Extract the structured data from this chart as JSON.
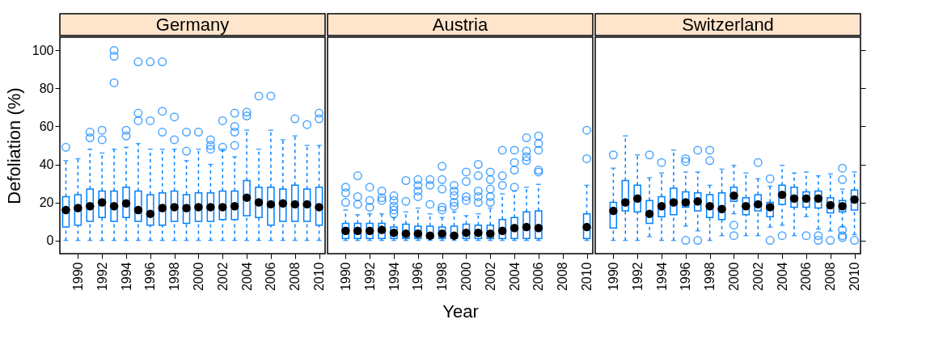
{
  "chart_data": [
    {
      "type": "box",
      "title": "Germany",
      "ylabel": "Defoliation (%)",
      "color": "#0080ff",
      "ylim": [
        -7,
        107
      ],
      "yticks": [
        0,
        20,
        40,
        60,
        80,
        100
      ],
      "categories": [
        null,
        "1990",
        null,
        "1992",
        null,
        "1994",
        null,
        "1996",
        null,
        "1998",
        null,
        "2000",
        null,
        "2002",
        null,
        "2004",
        null,
        "2006",
        null,
        "2008",
        null,
        "2010"
      ],
      "boxes": [
        {
          "low": 0,
          "q1": 7,
          "median": 16,
          "q3": 23,
          "high": 42,
          "outliers": [
            49
          ]
        },
        {
          "low": 0,
          "q1": 8,
          "median": 17,
          "q3": 24,
          "high": 43
        },
        {
          "low": 0,
          "q1": 10,
          "median": 18,
          "q3": 27,
          "high": 48,
          "outliers": [
            57,
            54
          ]
        },
        {
          "low": 0,
          "q1": 12,
          "median": 20,
          "q3": 26,
          "high": 46,
          "outliers": [
            58,
            53
          ]
        },
        {
          "low": 0,
          "q1": 10,
          "median": 18,
          "q3": 26,
          "high": 48,
          "outliers": [
            100,
            97,
            83
          ]
        },
        {
          "low": 0,
          "q1": 12,
          "median": 19.5,
          "q3": 28,
          "high": 49,
          "outliers": [
            58,
            55
          ]
        },
        {
          "low": 0,
          "q1": 10,
          "median": 16,
          "q3": 26,
          "high": 51,
          "outliers": [
            94,
            67,
            63
          ]
        },
        {
          "low": 0,
          "q1": 8,
          "median": 14,
          "q3": 24,
          "high": 48,
          "outliers": [
            94,
            63
          ]
        },
        {
          "low": 0,
          "q1": 8,
          "median": 17,
          "q3": 25,
          "high": 48,
          "outliers": [
            94,
            68,
            57
          ]
        },
        {
          "low": 0,
          "q1": 10,
          "median": 17.5,
          "q3": 26,
          "high": 48,
          "outliers": [
            65,
            53
          ]
        },
        {
          "low": 0,
          "q1": 9,
          "median": 17,
          "q3": 24,
          "high": 42,
          "outliers": [
            57,
            47
          ]
        },
        {
          "low": 0,
          "q1": 10,
          "median": 17.5,
          "q3": 25,
          "high": 48,
          "outliers": [
            57
          ]
        },
        {
          "low": 0,
          "q1": 10,
          "median": 17.5,
          "q3": 25,
          "high": 40,
          "outliers": [
            53,
            50,
            48
          ]
        },
        {
          "low": 0,
          "q1": 11,
          "median": 17.5,
          "q3": 26,
          "high": 48,
          "outliers": [
            63,
            49
          ]
        },
        {
          "low": 0,
          "q1": 11,
          "median": 18,
          "q3": 26,
          "high": 44,
          "outliers": [
            67,
            60,
            57,
            50
          ]
        },
        {
          "low": 0,
          "q1": 13,
          "median": 22.5,
          "q3": 31.5,
          "high": 58,
          "outliers": [
            67.5,
            65.5
          ]
        },
        {
          "low": 0,
          "q1": 12,
          "median": 20,
          "q3": 28,
          "high": 48,
          "outliers": [
            76
          ]
        },
        {
          "low": 0,
          "q1": 8,
          "median": 19,
          "q3": 28,
          "high": 58,
          "outliers": [
            76
          ]
        },
        {
          "low": 0,
          "q1": 10,
          "median": 19.5,
          "q3": 27,
          "high": 53
        },
        {
          "low": 0,
          "q1": 10,
          "median": 19,
          "q3": 29,
          "high": 55,
          "outliers": [
            64
          ]
        },
        {
          "low": 0,
          "q1": 10,
          "median": 19,
          "q3": 27,
          "high": 50,
          "outliers": [
            61
          ]
        },
        {
          "low": 0,
          "q1": 8,
          "median": 17.5,
          "q3": 28,
          "high": 50,
          "outliers": [
            67,
            64
          ]
        }
      ]
    },
    {
      "type": "box",
      "title": "Austria",
      "xlabel": "Year",
      "color": "#0080ff",
      "ylim": [
        -7,
        107
      ],
      "yticks": [
        0,
        20,
        40,
        60,
        80,
        100
      ],
      "tick_labels": "x",
      "categories": [
        null,
        "1990",
        null,
        "1992",
        null,
        "1994",
        null,
        "1996",
        null,
        "1998",
        null,
        "2000",
        null,
        "2002",
        null,
        "2004",
        null,
        "2006",
        null,
        "2008",
        null,
        "2010"
      ],
      "boxes": [
        null,
        {
          "low": 0,
          "q1": 1,
          "median": 5,
          "q3": 9,
          "high": 16,
          "outliers": [
            28,
            25,
            20
          ]
        },
        {
          "low": 0,
          "q1": 1,
          "median": 5,
          "q3": 9,
          "high": 13.5,
          "outliers": [
            34,
            23,
            19
          ]
        },
        {
          "low": 0,
          "q1": 1,
          "median": 5,
          "q3": 9,
          "high": 14,
          "outliers": [
            28,
            21,
            17.5
          ]
        },
        {
          "low": 0,
          "q1": 1,
          "median": 5.5,
          "q3": 9,
          "high": 14,
          "outliers": [
            26,
            22.5,
            21
          ]
        },
        {
          "low": 0,
          "q1": 1,
          "median": 4,
          "q3": 7,
          "high": 12,
          "outliers": [
            23.5,
            21,
            18,
            16,
            14
          ]
        },
        {
          "low": 0,
          "q1": 1,
          "median": 3.5,
          "q3": 8.5,
          "high": 15,
          "outliers": [
            31.5,
            20.5
          ]
        },
        {
          "low": 0,
          "q1": 1,
          "median": 3.5,
          "q3": 7.5,
          "high": 17,
          "outliers": [
            32,
            29,
            26,
            23
          ]
        },
        {
          "low": 0,
          "q1": 1,
          "median": 2.5,
          "q3": 7.5,
          "high": 14,
          "outliers": [
            32,
            29,
            19
          ]
        },
        {
          "low": 0,
          "q1": 1,
          "median": 3.5,
          "q3": 7,
          "high": 12,
          "outliers": [
            39,
            32,
            27,
            17.5,
            16
          ]
        },
        {
          "low": 0,
          "q1": 1,
          "median": 2.5,
          "q3": 7.5,
          "high": 15,
          "outliers": [
            29,
            26,
            23.5,
            20,
            18
          ]
        },
        {
          "low": 0,
          "q1": 1,
          "median": 4,
          "q3": 8.5,
          "high": 13,
          "outliers": [
            36,
            31,
            23,
            21
          ]
        },
        {
          "low": 0,
          "q1": 1,
          "median": 4,
          "q3": 8,
          "high": 14,
          "outliers": [
            40,
            34,
            26,
            23,
            20
          ]
        },
        {
          "low": 0,
          "q1": 1,
          "median": 3.5,
          "q3": 8,
          "high": 17,
          "outliers": [
            36,
            32,
            27,
            23,
            20
          ]
        },
        {
          "low": 0,
          "q1": 1,
          "median": 5,
          "q3": 11,
          "high": 24.5,
          "outliers": [
            47.5,
            34,
            29
          ]
        },
        {
          "low": 0,
          "q1": 1,
          "median": 6.5,
          "q3": 12,
          "high": 26,
          "outliers": [
            47.5,
            41,
            37,
            28
          ]
        },
        {
          "low": 0,
          "q1": 1,
          "median": 7,
          "q3": 15,
          "high": 28,
          "outliers": [
            54,
            47,
            44,
            42
          ]
        },
        {
          "low": 0,
          "q1": 1,
          "median": 6.5,
          "q3": 15.5,
          "high": 29.5,
          "outliers": [
            55,
            51,
            47.5,
            37,
            36
          ]
        },
        null,
        null,
        null,
        {
          "low": 0,
          "q1": 1,
          "median": 7,
          "q3": 14,
          "high": 29,
          "outliers": [
            58,
            43
          ]
        }
      ]
    },
    {
      "type": "box",
      "title": "Switzerland",
      "color": "#0080ff",
      "ylim": [
        -7,
        107
      ],
      "yticks": [
        0,
        20,
        40,
        60,
        80,
        100
      ],
      "tick_labels": "x",
      "categories": [
        null,
        "1990",
        null,
        "1992",
        null,
        "1994",
        null,
        "1996",
        null,
        "1998",
        null,
        "2000",
        null,
        "2002",
        null,
        "2004",
        null,
        "2006",
        null,
        "2008",
        null,
        "2010"
      ],
      "boxes": [
        null,
        {
          "low": 0,
          "q1": 6.5,
          "median": 15.5,
          "q3": 20,
          "high": 38,
          "outliers": [
            45
          ]
        },
        {
          "low": 0,
          "q1": 15.5,
          "median": 20,
          "q3": 31.5,
          "high": 55
        },
        {
          "low": 0,
          "q1": 15,
          "median": 22,
          "q3": 29,
          "high": 45
        },
        {
          "low": 2,
          "q1": 9,
          "median": 14,
          "q3": 21,
          "high": 33,
          "outliers": [
            45
          ]
        },
        {
          "low": 0,
          "q1": 12.5,
          "median": 18,
          "q3": 23,
          "high": 35.5,
          "outliers": [
            41
          ]
        },
        {
          "low": 0,
          "q1": 13.5,
          "median": 20,
          "q3": 27.5,
          "high": 47.5
        },
        {
          "low": 7.5,
          "q1": 17.5,
          "median": 20,
          "q3": 25.5,
          "high": 36,
          "outliers": [
            43,
            41.5,
            0
          ]
        },
        {
          "low": 5,
          "q1": 15.5,
          "median": 20.5,
          "q3": 25,
          "high": 36,
          "outliers": [
            47.5,
            0
          ]
        },
        {
          "low": 0,
          "q1": 12,
          "median": 18,
          "q3": 24,
          "high": 29,
          "outliers": [
            47.5,
            42
          ]
        },
        {
          "low": 2.5,
          "q1": 11,
          "median": 16.5,
          "q3": 25,
          "high": 37.5
        },
        {
          "low": 14,
          "q1": 20.5,
          "median": 23.5,
          "q3": 28,
          "high": 39.5,
          "outliers": [
            8,
            2.5
          ]
        },
        {
          "low": 2.5,
          "q1": 13.5,
          "median": 18,
          "q3": 22.5,
          "high": 35.5
        },
        {
          "low": 2.5,
          "q1": 15.5,
          "median": 19,
          "q3": 24,
          "high": 32.5,
          "outliers": [
            41
          ]
        },
        {
          "low": 7,
          "q1": 12.5,
          "median": 17.5,
          "q3": 20,
          "high": 28.5,
          "outliers": [
            32.5,
            0
          ]
        },
        {
          "low": 8,
          "q1": 19,
          "median": 24,
          "q3": 29,
          "high": 39.5,
          "outliers": [
            2.5
          ]
        },
        {
          "low": 2.5,
          "q1": 17.5,
          "median": 22,
          "q3": 28,
          "high": 35.5
        },
        {
          "low": 12.5,
          "q1": 17.5,
          "median": 22,
          "q3": 25.5,
          "high": 36,
          "outliers": [
            2.5
          ]
        },
        {
          "low": 6,
          "q1": 17,
          "median": 22,
          "q3": 26,
          "high": 34,
          "outliers": [
            2.5,
            0
          ]
        },
        {
          "low": 5,
          "q1": 14.5,
          "median": 18.5,
          "q3": 22.5,
          "high": 35,
          "outliers": [
            0
          ]
        },
        {
          "low": 7,
          "q1": 15,
          "median": 18,
          "q3": 21,
          "high": 27,
          "outliers": [
            38,
            32,
            5.5,
            2.5,
            1.5
          ]
        },
        {
          "low": 3,
          "q1": 16,
          "median": 21.5,
          "q3": 26.5,
          "high": 36,
          "outliers": [
            0
          ]
        }
      ]
    }
  ]
}
